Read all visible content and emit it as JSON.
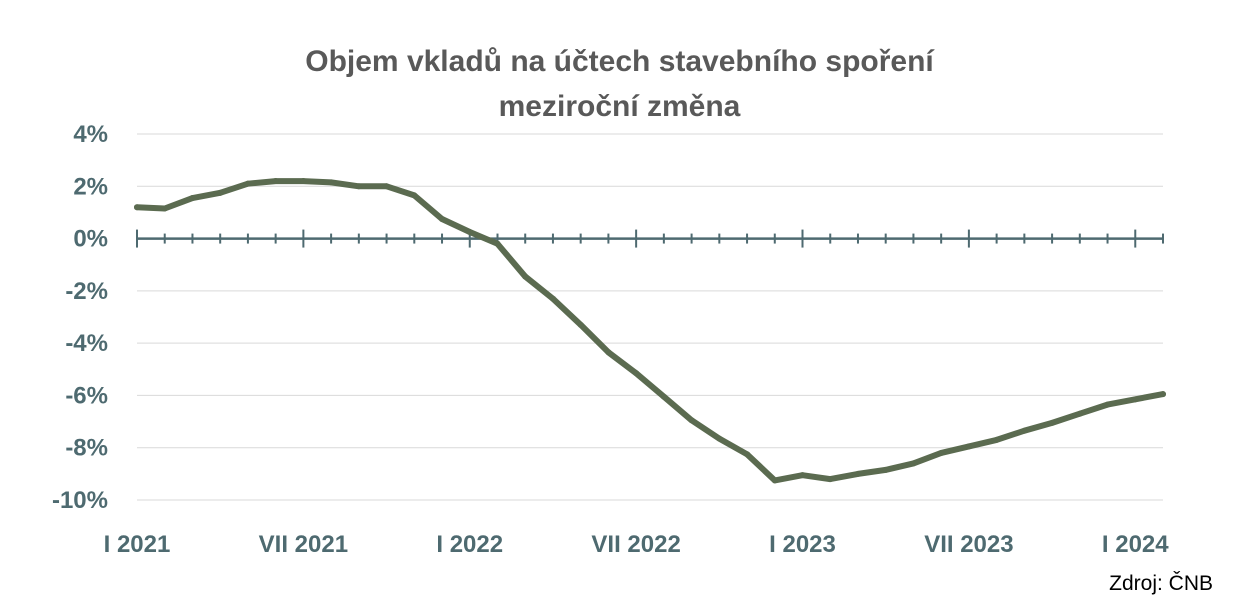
{
  "chart_data": {
    "type": "line",
    "title": "Objem vkladů na účtech stavebního spoření",
    "subtitle": "meziroční změna",
    "ylim": [
      -10,
      4
    ],
    "y_ticks": [
      {
        "value": 4,
        "label": "4%"
      },
      {
        "value": 2,
        "label": "2%"
      },
      {
        "value": 0,
        "label": "0%"
      },
      {
        "value": -2,
        "label": "-2%"
      },
      {
        "value": -4,
        "label": "-4%"
      },
      {
        "value": -6,
        "label": "-6%"
      },
      {
        "value": -8,
        "label": "-8%"
      },
      {
        "value": -10,
        "label": "-10%"
      }
    ],
    "x_labels": [
      {
        "index": 0,
        "label": "I 2021"
      },
      {
        "index": 6,
        "label": "VII 2021"
      },
      {
        "index": 12,
        "label": "I 2022"
      },
      {
        "index": 18,
        "label": "VII 2022"
      },
      {
        "index": 24,
        "label": "I 2023"
      },
      {
        "index": 30,
        "label": "VII 2023"
      },
      {
        "index": 36,
        "label": "I 2024"
      }
    ],
    "series": [
      {
        "values": [
          1.2,
          1.15,
          1.55,
          1.75,
          2.1,
          2.2,
          2.2,
          2.15,
          2.0,
          2.0,
          1.65,
          0.75,
          0.25,
          -0.2,
          -1.45,
          -2.3,
          -3.3,
          -4.35,
          -5.15,
          -6.05,
          -6.95,
          -7.65,
          -8.25,
          -9.25,
          -9.05,
          -9.2,
          -9.0,
          -8.85,
          -8.6,
          -8.2,
          -7.95,
          -7.7,
          -7.35,
          -7.05,
          -6.7,
          -6.35,
          -6.15,
          -5.95
        ],
        "color": "#5b6b50"
      }
    ],
    "grid": true,
    "source": "Zdroj: ČNB"
  }
}
